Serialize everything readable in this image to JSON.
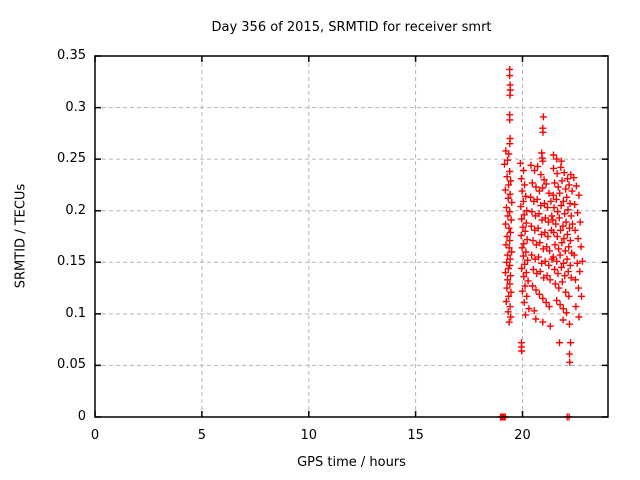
{
  "figure": {
    "title": "Day 356 of 2015, SRMTID for receiver smrt",
    "background_color": "#ffffff",
    "text_color": "#000000"
  },
  "chart_data": {
    "type": "scatter",
    "title": "Day 356 of 2015, SRMTID for receiver smrt",
    "xlabel": "GPS time / hours",
    "ylabel": "SRMTID / TECUs",
    "xlim": [
      0,
      24
    ],
    "ylim": [
      0,
      0.35
    ],
    "xticks": {
      "values": [
        0,
        5,
        10,
        15,
        20
      ],
      "labels": [
        "0",
        "5",
        "10",
        "15",
        "20"
      ]
    },
    "yticks": {
      "values": [
        0,
        0.05,
        0.1,
        0.15,
        0.2,
        0.25,
        0.3,
        0.35
      ],
      "labels": [
        "0",
        "0.05",
        "0.1",
        "0.15",
        "0.2",
        "0.25",
        "0.3",
        "0.35"
      ]
    },
    "grid": {
      "show": true,
      "style": "dashed",
      "color": "#b4b4b4"
    },
    "legend": {
      "show": false
    },
    "marker": {
      "shape": "plus",
      "color": "#ff0000",
      "size": 7,
      "stroke_width": 1.4
    },
    "border_color": "#000000",
    "series": [
      {
        "name": "SRMTID",
        "points": [
          [
            19.4,
            0.337
          ],
          [
            19.4,
            0.331
          ],
          [
            19.42,
            0.322
          ],
          [
            19.43,
            0.317
          ],
          [
            19.41,
            0.312
          ],
          [
            19.4,
            0.293
          ],
          [
            19.4,
            0.288
          ],
          [
            19.42,
            0.27
          ],
          [
            19.4,
            0.265
          ],
          [
            19.22,
            0.258
          ],
          [
            19.36,
            0.255
          ],
          [
            19.3,
            0.249
          ],
          [
            19.16,
            0.245
          ],
          [
            19.4,
            0.238
          ],
          [
            19.28,
            0.233
          ],
          [
            19.45,
            0.229
          ],
          [
            19.35,
            0.225
          ],
          [
            19.2,
            0.22
          ],
          [
            19.42,
            0.216
          ],
          [
            19.33,
            0.212
          ],
          [
            19.5,
            0.208
          ],
          [
            19.25,
            0.203
          ],
          [
            19.4,
            0.199
          ],
          [
            19.31,
            0.195
          ],
          [
            19.47,
            0.191
          ],
          [
            19.21,
            0.187
          ],
          [
            19.37,
            0.183
          ],
          [
            19.44,
            0.179
          ],
          [
            19.28,
            0.175
          ],
          [
            19.4,
            0.171
          ],
          [
            19.23,
            0.167
          ],
          [
            19.38,
            0.164
          ],
          [
            19.49,
            0.16
          ],
          [
            19.3,
            0.157
          ],
          [
            19.42,
            0.153
          ],
          [
            19.26,
            0.15
          ],
          [
            19.4,
            0.147
          ],
          [
            19.34,
            0.144
          ],
          [
            19.2,
            0.14
          ],
          [
            19.44,
            0.137
          ],
          [
            19.3,
            0.133
          ],
          [
            19.41,
            0.129
          ],
          [
            19.27,
            0.125
          ],
          [
            19.46,
            0.121
          ],
          [
            19.35,
            0.117
          ],
          [
            19.24,
            0.112
          ],
          [
            19.42,
            0.107
          ],
          [
            19.33,
            0.102
          ],
          [
            19.45,
            0.097
          ],
          [
            19.38,
            0.092
          ],
          [
            19.9,
            0.246
          ],
          [
            20.05,
            0.239
          ],
          [
            19.95,
            0.231
          ],
          [
            20.1,
            0.225
          ],
          [
            19.98,
            0.219
          ],
          [
            20.15,
            0.214
          ],
          [
            20.04,
            0.209
          ],
          [
            19.92,
            0.204
          ],
          [
            20.2,
            0.2
          ],
          [
            20.08,
            0.196
          ],
          [
            19.96,
            0.192
          ],
          [
            20.18,
            0.188
          ],
          [
            20.02,
            0.184
          ],
          [
            20.12,
            0.18
          ],
          [
            19.94,
            0.176
          ],
          [
            20.22,
            0.172
          ],
          [
            20.06,
            0.168
          ],
          [
            19.98,
            0.164
          ],
          [
            20.16,
            0.16
          ],
          [
            20.04,
            0.156
          ],
          [
            20.24,
            0.152
          ],
          [
            20.1,
            0.148
          ],
          [
            19.96,
            0.144
          ],
          [
            20.18,
            0.14
          ],
          [
            20.06,
            0.136
          ],
          [
            20.26,
            0.132
          ],
          [
            20.12,
            0.127
          ],
          [
            20.0,
            0.122
          ],
          [
            20.2,
            0.117
          ],
          [
            20.08,
            0.111
          ],
          [
            20.3,
            0.105
          ],
          [
            20.14,
            0.099
          ],
          [
            19.95,
            0.072
          ],
          [
            19.95,
            0.068
          ],
          [
            19.96,
            0.064
          ],
          [
            20.98,
            0.291
          ],
          [
            20.95,
            0.28
          ],
          [
            20.96,
            0.276
          ],
          [
            20.9,
            0.256
          ],
          [
            20.92,
            0.251
          ],
          [
            20.95,
            0.248
          ],
          [
            21.45,
            0.254
          ],
          [
            21.6,
            0.25
          ],
          [
            21.82,
            0.248
          ],
          [
            20.4,
            0.244
          ],
          [
            20.56,
            0.239
          ],
          [
            20.71,
            0.243
          ],
          [
            20.86,
            0.235
          ],
          [
            21.01,
            0.23
          ],
          [
            20.46,
            0.227
          ],
          [
            20.63,
            0.223
          ],
          [
            20.79,
            0.219
          ],
          [
            20.94,
            0.222
          ],
          [
            21.11,
            0.226
          ],
          [
            21.24,
            0.217
          ],
          [
            20.38,
            0.213
          ],
          [
            20.53,
            0.209
          ],
          [
            20.69,
            0.211
          ],
          [
            20.85,
            0.205
          ],
          [
            21.03,
            0.207
          ],
          [
            21.17,
            0.203
          ],
          [
            21.33,
            0.209
          ],
          [
            20.44,
            0.199
          ],
          [
            20.61,
            0.195
          ],
          [
            20.77,
            0.197
          ],
          [
            20.91,
            0.191
          ],
          [
            21.07,
            0.193
          ],
          [
            21.21,
            0.189
          ],
          [
            21.37,
            0.195
          ],
          [
            20.41,
            0.185
          ],
          [
            20.57,
            0.181
          ],
          [
            20.73,
            0.183
          ],
          [
            20.89,
            0.177
          ],
          [
            21.05,
            0.179
          ],
          [
            21.19,
            0.175
          ],
          [
            21.35,
            0.181
          ],
          [
            20.49,
            0.171
          ],
          [
            20.65,
            0.167
          ],
          [
            20.81,
            0.169
          ],
          [
            20.97,
            0.163
          ],
          [
            21.13,
            0.165
          ],
          [
            21.27,
            0.161
          ],
          [
            20.43,
            0.157
          ],
          [
            20.59,
            0.153
          ],
          [
            20.75,
            0.155
          ],
          [
            20.9,
            0.149
          ],
          [
            21.06,
            0.151
          ],
          [
            21.23,
            0.147
          ],
          [
            21.38,
            0.153
          ],
          [
            20.51,
            0.143
          ],
          [
            20.67,
            0.139
          ],
          [
            20.83,
            0.141
          ],
          [
            20.99,
            0.135
          ],
          [
            21.15,
            0.137
          ],
          [
            21.29,
            0.133
          ],
          [
            20.47,
            0.127
          ],
          [
            20.63,
            0.123
          ],
          [
            20.79,
            0.119
          ],
          [
            20.95,
            0.115
          ],
          [
            21.11,
            0.111
          ],
          [
            21.25,
            0.107
          ],
          [
            20.55,
            0.103
          ],
          [
            21.45,
            0.241
          ],
          [
            21.62,
            0.236
          ],
          [
            21.79,
            0.242
          ],
          [
            21.95,
            0.237
          ],
          [
            22.11,
            0.231
          ],
          [
            22.26,
            0.235
          ],
          [
            21.5,
            0.227
          ],
          [
            21.67,
            0.223
          ],
          [
            21.85,
            0.229
          ],
          [
            22.02,
            0.221
          ],
          [
            22.18,
            0.225
          ],
          [
            22.32,
            0.219
          ],
          [
            21.44,
            0.215
          ],
          [
            21.58,
            0.211
          ],
          [
            21.74,
            0.217
          ],
          [
            21.91,
            0.209
          ],
          [
            22.07,
            0.213
          ],
          [
            22.22,
            0.207
          ],
          [
            21.48,
            0.203
          ],
          [
            21.64,
            0.199
          ],
          [
            21.81,
            0.205
          ],
          [
            21.97,
            0.197
          ],
          [
            22.13,
            0.201
          ],
          [
            22.28,
            0.195
          ],
          [
            21.42,
            0.191
          ],
          [
            21.56,
            0.187
          ],
          [
            21.72,
            0.193
          ],
          [
            21.89,
            0.185
          ],
          [
            22.04,
            0.189
          ],
          [
            22.2,
            0.183
          ],
          [
            22.34,
            0.187
          ],
          [
            21.46,
            0.179
          ],
          [
            21.63,
            0.175
          ],
          [
            21.78,
            0.181
          ],
          [
            21.94,
            0.173
          ],
          [
            22.1,
            0.177
          ],
          [
            22.24,
            0.171
          ],
          [
            21.52,
            0.167
          ],
          [
            21.69,
            0.163
          ],
          [
            21.84,
            0.169
          ],
          [
            22.0,
            0.161
          ],
          [
            22.16,
            0.165
          ],
          [
            22.3,
            0.159
          ],
          [
            21.44,
            0.155
          ],
          [
            21.6,
            0.151
          ],
          [
            21.76,
            0.157
          ],
          [
            21.92,
            0.149
          ],
          [
            22.08,
            0.153
          ],
          [
            22.23,
            0.147
          ],
          [
            21.5,
            0.143
          ],
          [
            21.66,
            0.139
          ],
          [
            21.82,
            0.145
          ],
          [
            21.98,
            0.137
          ],
          [
            22.14,
            0.141
          ],
          [
            22.28,
            0.135
          ],
          [
            21.54,
            0.129
          ],
          [
            21.7,
            0.125
          ],
          [
            21.86,
            0.131
          ],
          [
            22.02,
            0.121
          ],
          [
            22.17,
            0.117
          ],
          [
            21.6,
            0.113
          ],
          [
            21.76,
            0.109
          ],
          [
            21.91,
            0.105
          ],
          [
            22.06,
            0.101
          ],
          [
            22.4,
            0.232
          ],
          [
            22.52,
            0.224
          ],
          [
            22.64,
            0.215
          ],
          [
            22.44,
            0.206
          ],
          [
            22.58,
            0.198
          ],
          [
            22.7,
            0.189
          ],
          [
            22.46,
            0.181
          ],
          [
            22.6,
            0.173
          ],
          [
            22.74,
            0.165
          ],
          [
            22.42,
            0.157
          ],
          [
            22.56,
            0.149
          ],
          [
            22.68,
            0.141
          ],
          [
            22.8,
            0.151
          ],
          [
            22.48,
            0.133
          ],
          [
            22.62,
            0.125
          ],
          [
            22.76,
            0.117
          ],
          [
            22.5,
            0.107
          ],
          [
            22.64,
            0.097
          ],
          [
            20.62,
            0.095
          ],
          [
            20.95,
            0.092
          ],
          [
            21.3,
            0.088
          ],
          [
            21.73,
            0.072
          ],
          [
            22.25,
            0.072
          ],
          [
            21.9,
            0.094
          ],
          [
            22.2,
            0.09
          ],
          [
            22.2,
            0.061
          ],
          [
            22.21,
            0.053
          ],
          [
            18.98,
            0
          ],
          [
            19.01,
            0
          ],
          [
            19.04,
            0
          ],
          [
            19.07,
            0
          ],
          [
            19.1,
            0
          ],
          [
            19.13,
            0
          ],
          [
            19.16,
            0
          ],
          [
            19.19,
            0
          ],
          [
            22.09,
            0
          ],
          [
            22.18,
            0
          ]
        ]
      }
    ]
  }
}
